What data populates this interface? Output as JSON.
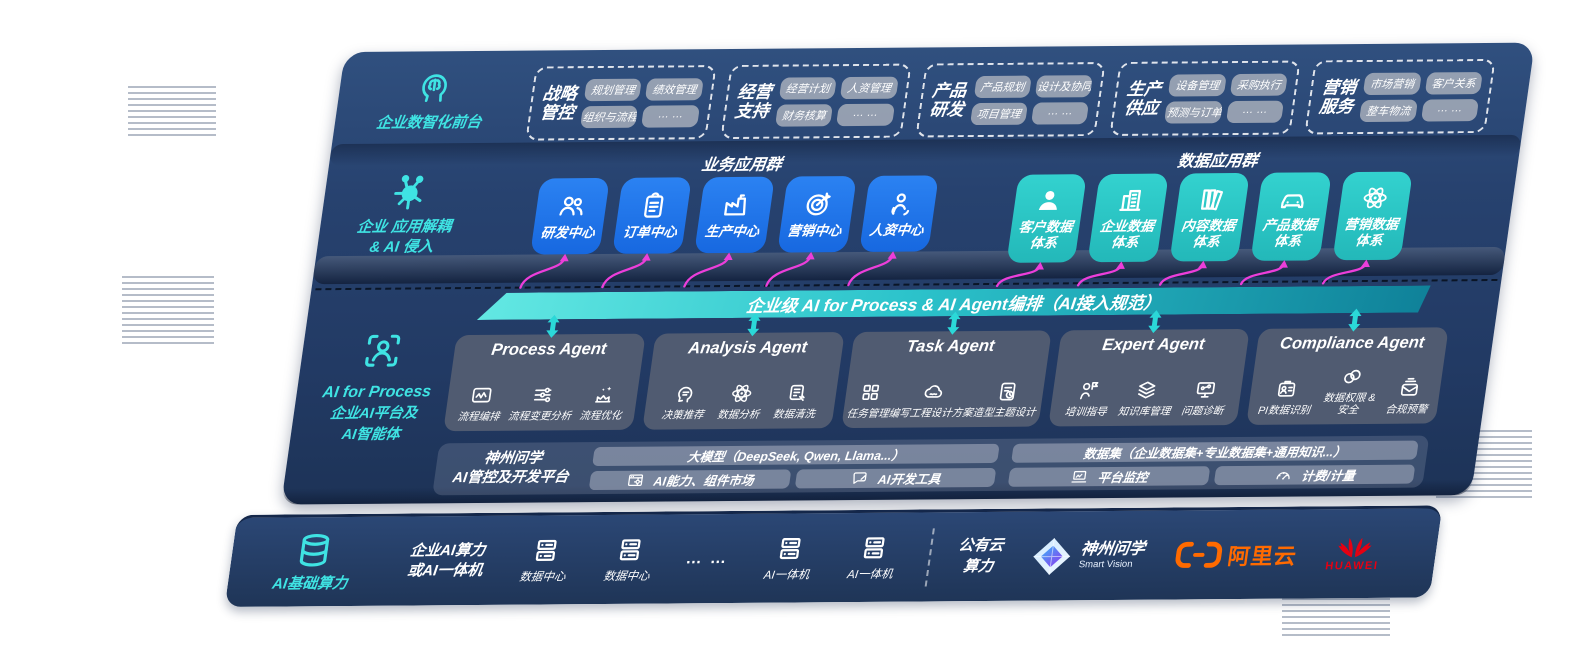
{
  "front": {
    "label": "企业数智化前台",
    "icon": "brain-head-icon",
    "groups": [
      {
        "title1": "战略",
        "title2": "管控",
        "tags": [
          "规划管理",
          "绩效管理",
          "组织与流程",
          "… …"
        ]
      },
      {
        "title1": "经营",
        "title2": "支持",
        "tags": [
          "经营计划",
          "人资管理",
          "财务核算",
          "… …"
        ]
      },
      {
        "title1": "产品",
        "title2": "研发",
        "tags": [
          "产品规划",
          "设计及协同",
          "项目管理",
          "… …"
        ]
      },
      {
        "title1": "生产",
        "title2": "供应",
        "tags": [
          "设备管理",
          "采购执行",
          "预测与订单",
          "… …"
        ]
      },
      {
        "title1": "营销",
        "title2": "服务",
        "tags": [
          "市场营销",
          "客户关系",
          "整车物流",
          "… …"
        ]
      }
    ]
  },
  "apps": {
    "label1": "企业 应用解耦",
    "label2": "& AI 侵入",
    "icon": "molecule-icon",
    "business_header": "业务应用群",
    "data_header": "数据应用群",
    "business": [
      {
        "label": "研发中心",
        "icon": "team-icon"
      },
      {
        "label": "订单中心",
        "icon": "clipboard-icon"
      },
      {
        "label": "生产中心",
        "icon": "factory-icon"
      },
      {
        "label": "营销中心",
        "icon": "target-icon"
      },
      {
        "label": "人资中心",
        "icon": "hr-people-icon"
      }
    ],
    "data": [
      {
        "label1": "客户数据",
        "label2": "体系",
        "icon": "user-icon"
      },
      {
        "label1": "企业数据",
        "label2": "体系",
        "icon": "building-icon"
      },
      {
        "label1": "内容数据",
        "label2": "体系",
        "icon": "books-icon"
      },
      {
        "label1": "产品数据",
        "label2": "体系",
        "icon": "car-icon"
      },
      {
        "label1": "营销数据",
        "label2": "体系",
        "icon": "atom-icon"
      }
    ]
  },
  "banner": {
    "label": "企业级 AI for Process & AI Agent编排（AI接入规范）"
  },
  "ai": {
    "icon": "scan-person-icon",
    "label1": "AI for Process",
    "label2": "企业AI平台及",
    "label3": "AI智能体",
    "agents": [
      {
        "title": "Process Agent",
        "items": [
          {
            "label": "流程编排",
            "icon": "monitor-wave-icon"
          },
          {
            "label": "流程变更分析",
            "icon": "sliders-icon"
          },
          {
            "label": "流程优化",
            "icon": "optimize-icon"
          }
        ]
      },
      {
        "title": "Analysis Agent",
        "items": [
          {
            "label": "决策推荐",
            "icon": "speech-head-icon"
          },
          {
            "label": "数据分析",
            "icon": "atom-icon"
          },
          {
            "label": "数据清洗",
            "icon": "data-clean-icon"
          }
        ]
      },
      {
        "title": "Task Agent",
        "items": [
          {
            "label": "任务管理",
            "icon": "task-grid-icon"
          },
          {
            "label": "编写工程设计方案",
            "icon": "cloud-edit-icon"
          },
          {
            "label": "造型主题设计",
            "icon": "doc-check-icon"
          }
        ]
      },
      {
        "title": "Expert Agent",
        "items": [
          {
            "label": "培训指导",
            "icon": "trainer-icon"
          },
          {
            "label": "知识库管理",
            "icon": "layers-icon"
          },
          {
            "label": "问题诊断",
            "icon": "diagnose-icon"
          }
        ]
      },
      {
        "title": "Compliance Agent",
        "items": [
          {
            "label": "PI数据识别",
            "icon": "id-card-icon"
          },
          {
            "label": "数据权限 & 安全",
            "icon": "link-icon"
          },
          {
            "label": "合规预警",
            "icon": "mail-alert-icon"
          }
        ]
      }
    ]
  },
  "platform": {
    "label1": "神州问学",
    "label2": "AI管控及开发平台",
    "model_bar": "大模型（DeepSeek, Qwen, Llama...）",
    "dataset_bar": "数据集（企业数据集+专业数据集+通用知识...）",
    "cells": [
      {
        "label": "AI能力、组件市场",
        "icon": "app-market-icon"
      },
      {
        "label": "AI开发工具",
        "icon": "dev-tools-icon"
      },
      {
        "label": "平台监控",
        "icon": "laptop-chart-icon"
      },
      {
        "label": "计费/计量",
        "icon": "gauge-icon"
      }
    ]
  },
  "infra": {
    "label": "AI基础算力",
    "icon": "database-icon",
    "compute1": "企业AI算力",
    "compute2": "或AI一体机",
    "nodes": [
      {
        "label": "数据中心",
        "icon": "server-icon"
      },
      {
        "label": "数据中心",
        "icon": "server-icon"
      },
      {
        "label": "AI一体机",
        "icon": "server-icon"
      },
      {
        "label": "AI一体机",
        "icon": "server-icon"
      }
    ],
    "dots": "… …",
    "cloud1": "公有云",
    "cloud2": "算力",
    "partners": {
      "smartvision": {
        "name": "神州问学",
        "sub": "Smart Vision"
      },
      "alicloud": {
        "name": "阿里云"
      },
      "huawei": {
        "name": "HUAWEI"
      }
    }
  },
  "colors": {
    "accent_cyan": "#3FE3E3",
    "box_blue": "#1B74EE",
    "box_teal": "#2CC9C7",
    "connector_pink": "#EC3EDA",
    "arrow_cyan": "#2BD8D8",
    "alicloud_orange": "#FF6A00",
    "huawei_red": "#E60012"
  }
}
